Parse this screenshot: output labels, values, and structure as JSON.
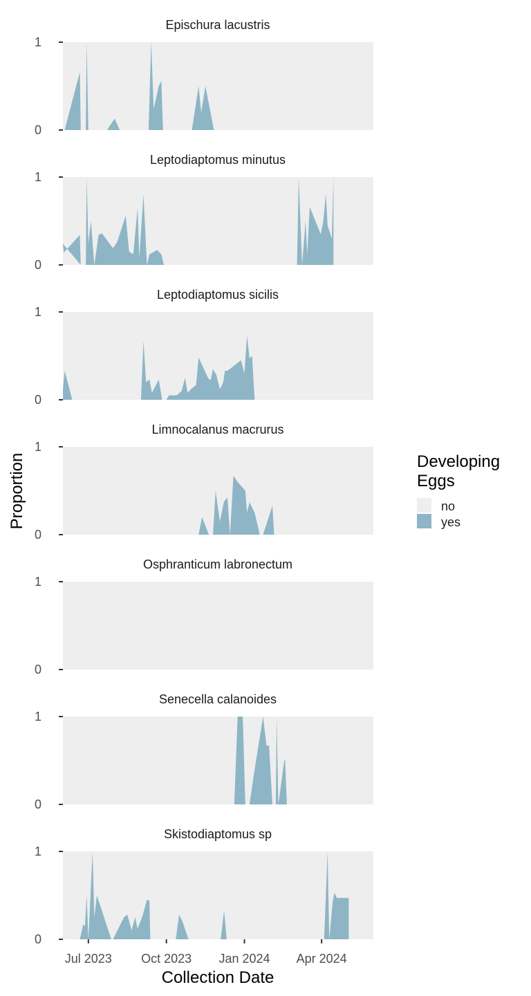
{
  "chart_data": {
    "type": "area",
    "facet_type": "small-multiples",
    "xlabel": "Collection Date",
    "ylabel": "Proportion",
    "xlim": [
      "2023-06-01",
      "2024-06-01"
    ],
    "ylim": [
      0,
      1
    ],
    "y_ticks": [
      0,
      1
    ],
    "x_ticks": [
      {
        "date": "2023-07-01",
        "label": "Jul 2023"
      },
      {
        "date": "2023-10-01",
        "label": "Oct 2023"
      },
      {
        "date": "2024-01-01",
        "label": "Jan 2024"
      },
      {
        "date": "2024-04-01",
        "label": "Apr 2024"
      }
    ],
    "legend": {
      "title_lines": [
        "Developing",
        "Eggs"
      ],
      "placement": "right",
      "items": [
        {
          "label": "no",
          "color": "#EEEEEE"
        },
        {
          "label": "yes",
          "color": "#8DB5C5"
        }
      ]
    },
    "colors": {
      "no": "#EEEEEE",
      "yes": "#8DB5C5"
    },
    "panels": [
      {
        "title": "Epischura lacustris",
        "segments": [
          [
            [
              "2023-06-03",
              0
            ],
            [
              "2023-06-21",
              0.66
            ],
            [
              "2023-06-22",
              0
            ]
          ],
          [
            [
              "2023-06-28",
              0
            ],
            [
              "2023-06-29",
              1
            ],
            [
              "2023-07-01",
              0
            ]
          ],
          [
            [
              "2023-07-23",
              0
            ],
            [
              "2023-08-01",
              0.13
            ],
            [
              "2023-08-07",
              0
            ]
          ],
          [
            [
              "2023-09-10",
              0
            ],
            [
              "2023-09-13",
              1
            ],
            [
              "2023-09-16",
              0.24
            ],
            [
              "2023-09-22",
              0.5
            ],
            [
              "2023-09-25",
              0.56
            ],
            [
              "2023-09-27",
              0
            ]
          ],
          [
            [
              "2023-10-31",
              0
            ],
            [
              "2023-11-04",
              0.25
            ],
            [
              "2023-11-08",
              0.5
            ],
            [
              "2023-11-11",
              0.2
            ],
            [
              "2023-11-16",
              0.5
            ],
            [
              "2023-11-26",
              0
            ]
          ]
        ]
      },
      {
        "title": "Leptodiaptomus minutus",
        "segments": [
          [
            [
              "2023-06-01",
              0.24
            ],
            [
              "2023-06-02",
              0.14
            ],
            [
              "2023-06-21",
              0.34
            ],
            [
              "2023-06-22",
              0
            ]
          ],
          [
            [
              "2023-06-28",
              0
            ],
            [
              "2023-06-29",
              1
            ],
            [
              "2023-07-01",
              0.24
            ],
            [
              "2023-07-04",
              0.5
            ],
            [
              "2023-07-08",
              0
            ]
          ],
          [
            [
              "2023-07-08",
              0
            ],
            [
              "2023-07-13",
              0.34
            ],
            [
              "2023-07-17",
              0.36
            ],
            [
              "2023-07-30",
              0.19
            ],
            [
              "2023-08-04",
              0.26
            ],
            [
              "2023-08-14",
              0.56
            ],
            [
              "2023-08-18",
              0.15
            ],
            [
              "2023-08-23",
              0.12
            ],
            [
              "2023-08-28",
              0.65
            ],
            [
              "2023-08-30",
              0.08
            ],
            [
              "2023-09-04",
              0.8
            ],
            [
              "2023-09-08",
              0
            ]
          ],
          [
            [
              "2023-09-08",
              0
            ],
            [
              "2023-09-11",
              0.12
            ],
            [
              "2023-09-20",
              0.17
            ],
            [
              "2023-09-25",
              0.12
            ],
            [
              "2023-09-28",
              0
            ]
          ],
          [
            [
              "2024-03-03",
              0
            ],
            [
              "2024-03-05",
              1
            ],
            [
              "2024-03-09",
              0
            ],
            [
              "2024-03-13",
              0.5
            ],
            [
              "2024-03-15",
              0.12
            ],
            [
              "2024-03-18",
              0.66
            ],
            [
              "2024-03-31",
              0.35
            ],
            [
              "2024-04-03",
              0.5
            ],
            [
              "2024-04-06",
              0.81
            ],
            [
              "2024-04-08",
              0.45
            ],
            [
              "2024-04-13",
              0.3
            ],
            [
              "2024-04-15",
              1
            ],
            [
              "2024-04-15",
              0
            ]
          ]
        ]
      },
      {
        "title": "Leptodiaptomus sicilis",
        "segments": [
          [
            [
              "2023-06-01",
              0
            ],
            [
              "2023-06-01",
              0.12
            ],
            [
              "2023-06-03",
              0.33
            ],
            [
              "2023-06-12",
              0
            ]
          ],
          [
            [
              "2023-09-01",
              0
            ],
            [
              "2023-09-04",
              0.67
            ],
            [
              "2023-09-07",
              0.2
            ],
            [
              "2023-09-11",
              0.23
            ],
            [
              "2023-09-14",
              0.08
            ],
            [
              "2023-09-22",
              0.23
            ],
            [
              "2023-09-26",
              0
            ],
            [
              "2023-10-01",
              0
            ],
            [
              "2023-10-04",
              0.05
            ],
            [
              "2023-10-13",
              0.05
            ],
            [
              "2023-10-19",
              0.1
            ],
            [
              "2023-10-23",
              0.25
            ],
            [
              "2023-10-26",
              0.08
            ],
            [
              "2023-10-30",
              0.12
            ],
            [
              "2023-11-05",
              0.17
            ],
            [
              "2023-11-08",
              0.48
            ],
            [
              "2023-11-19",
              0.25
            ],
            [
              "2023-11-22",
              0.22
            ],
            [
              "2023-11-25",
              0.35
            ],
            [
              "2023-11-29",
              0.28
            ],
            [
              "2023-12-03",
              0.12
            ],
            [
              "2023-12-07",
              0.2
            ],
            [
              "2023-12-09",
              0.33
            ],
            [
              "2023-12-12",
              0.33
            ],
            [
              "2023-12-28",
              0.45
            ],
            [
              "2024-01-01",
              0.3
            ],
            [
              "2024-01-04",
              0.73
            ],
            [
              "2024-01-07",
              0.47
            ],
            [
              "2024-01-10",
              0.5
            ],
            [
              "2024-01-13",
              0
            ]
          ]
        ]
      },
      {
        "title": "Limnocalanus macrurus",
        "segments": [
          [
            [
              "2023-11-08",
              0
            ],
            [
              "2023-11-12",
              0.2
            ],
            [
              "2023-11-20",
              0
            ]
          ],
          [
            [
              "2023-11-25",
              0
            ],
            [
              "2023-11-28",
              0.5
            ],
            [
              "2023-12-03",
              0.15
            ],
            [
              "2023-12-08",
              0.38
            ],
            [
              "2023-12-12",
              0.42
            ],
            [
              "2023-12-15",
              0
            ]
          ],
          [
            [
              "2023-12-15",
              0
            ],
            [
              "2023-12-19",
              0.67
            ],
            [
              "2023-12-24",
              0.6
            ],
            [
              "2024-01-02",
              0.5
            ],
            [
              "2024-01-04",
              0.25
            ],
            [
              "2024-01-07",
              0.37
            ],
            [
              "2024-01-13",
              0.25
            ],
            [
              "2024-01-19",
              0
            ]
          ],
          [
            [
              "2024-01-23",
              0
            ],
            [
              "2024-02-03",
              0.33
            ],
            [
              "2024-02-05",
              0
            ]
          ]
        ]
      },
      {
        "title": "Osphranticum labronectum",
        "segments": []
      },
      {
        "title": "Senecella calanoides",
        "segments": [
          [
            [
              "2023-12-20",
              0
            ],
            [
              "2023-12-24",
              1
            ],
            [
              "2023-12-30",
              1
            ],
            [
              "2024-01-02",
              0
            ]
          ],
          [
            [
              "2024-01-07",
              0
            ],
            [
              "2024-01-13",
              0.4
            ],
            [
              "2024-01-23",
              1
            ],
            [
              "2024-01-27",
              0.67
            ],
            [
              "2024-01-30",
              0.67
            ],
            [
              "2024-02-03",
              0
            ]
          ],
          [
            [
              "2024-02-07",
              0
            ],
            [
              "2024-02-08",
              1
            ],
            [
              "2024-02-10",
              0
            ]
          ],
          [
            [
              "2024-02-10",
              0
            ],
            [
              "2024-02-17",
              0.5
            ],
            [
              "2024-02-18",
              0.5
            ],
            [
              "2024-02-20",
              0
            ]
          ]
        ]
      },
      {
        "title": "Skistodiaptomus sp",
        "segments": [
          [
            [
              "2023-06-01",
              0.3
            ],
            [
              "2023-06-02",
              0
            ]
          ],
          [
            [
              "2023-06-21",
              0
            ],
            [
              "2023-06-25",
              0.17
            ],
            [
              "2023-06-27",
              0.15
            ],
            [
              "2023-06-29",
              0.5
            ],
            [
              "2023-07-01",
              0
            ]
          ],
          [
            [
              "2023-07-01",
              0
            ],
            [
              "2023-07-06",
              1
            ],
            [
              "2023-07-08",
              0.25
            ],
            [
              "2023-07-11",
              0.5
            ],
            [
              "2023-07-28",
              0
            ]
          ],
          [
            [
              "2023-07-30",
              0
            ],
            [
              "2023-08-12",
              0.25
            ],
            [
              "2023-08-16",
              0.28
            ],
            [
              "2023-08-21",
              0.1
            ],
            [
              "2023-08-25",
              0.25
            ],
            [
              "2023-08-28",
              0.12
            ],
            [
              "2023-09-03",
              0.27
            ],
            [
              "2023-09-08",
              0.45
            ],
            [
              "2023-09-11",
              0.44
            ],
            [
              "2023-09-12",
              0
            ]
          ],
          [
            [
              "2023-10-12",
              0
            ],
            [
              "2023-10-16",
              0.28
            ],
            [
              "2023-10-20",
              0.2
            ],
            [
              "2023-10-27",
              0
            ]
          ],
          [
            [
              "2023-12-04",
              0
            ],
            [
              "2023-12-08",
              0.33
            ],
            [
              "2023-12-11",
              0
            ]
          ],
          [
            [
              "2024-04-04",
              0
            ],
            [
              "2024-04-08",
              1
            ],
            [
              "2024-04-10",
              0
            ],
            [
              "2024-04-14",
              0.42
            ],
            [
              "2024-04-16",
              0.53
            ],
            [
              "2024-04-19",
              0.47
            ],
            [
              "2024-05-03",
              0.47
            ],
            [
              "2024-05-03",
              0
            ]
          ]
        ]
      }
    ]
  }
}
